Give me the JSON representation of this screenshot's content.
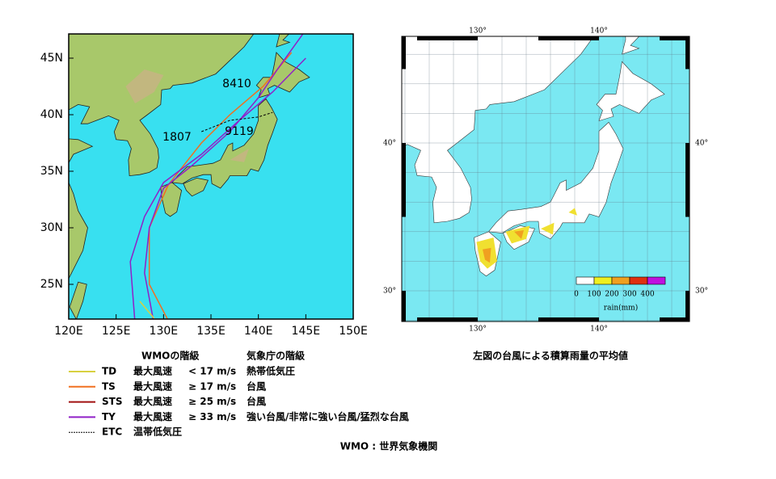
{
  "left_map": {
    "lat_labels": [
      "45N",
      "40N",
      "35N",
      "30N",
      "25N"
    ],
    "lon_labels": [
      "120E",
      "125E",
      "130E",
      "135E",
      "140E",
      "145E",
      "150E"
    ],
    "track_labels": [
      "8410",
      "1807",
      "9119"
    ]
  },
  "right_map": {
    "lon_labels_top": [
      "130°",
      "140°"
    ],
    "lon_labels_bottom": [
      "130°",
      "140°"
    ],
    "lat_labels_left": [
      "40°",
      "30°"
    ],
    "lat_labels_right": [
      "40°",
      "30°"
    ],
    "colorbar": {
      "labels": [
        "0",
        "100",
        "200",
        "300",
        "400"
      ],
      "colors": [
        "#ffffff",
        "#f0f020",
        "#f0a020",
        "#e03010",
        "#c010e0"
      ],
      "title": "rain(mm)"
    },
    "caption": "左図の台風による積算雨量の平均値"
  },
  "legend": {
    "headers": [
      "WMOの階級",
      "気象庁の階級"
    ],
    "rows": [
      {
        "code": "TD",
        "color": "#d8d040",
        "wind": "最大風速",
        "condition": "< 17 m/s",
        "jma_class": "熱帯低気圧"
      },
      {
        "code": "TS",
        "color": "#f07020",
        "wind": "最大風速",
        "condition": "≥ 17 m/s",
        "jma_class": "台風"
      },
      {
        "code": "STS",
        "color": "#a01010",
        "wind": "最大風速",
        "condition": "≥ 25 m/s",
        "jma_class": "台風"
      },
      {
        "code": "TY",
        "color": "#9020c8",
        "wind": "最大風速",
        "condition": "≥ 33 m/s",
        "jma_class": "強い台風/非常に強い台風/猛烈な台風"
      },
      {
        "code": "ETC",
        "color": "#000000",
        "jma_class": "温帯低気圧"
      }
    ],
    "footnote": "WMO : 世界気象機関"
  }
}
